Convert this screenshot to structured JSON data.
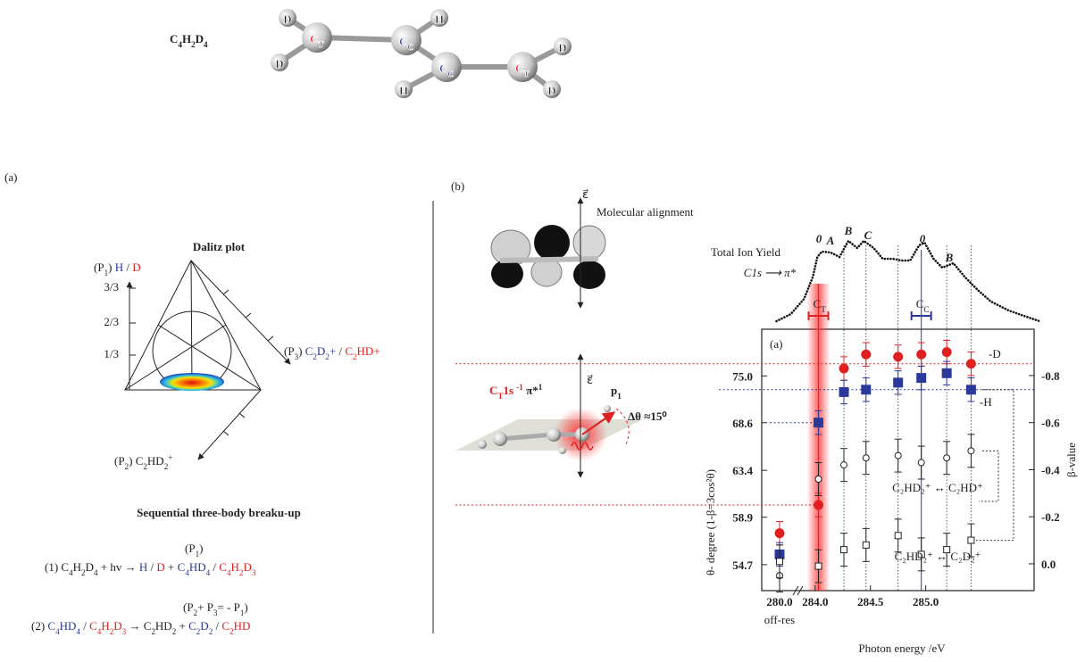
{
  "molecule": {
    "formula": [
      {
        "text": "C"
      },
      {
        "text": "4",
        "sub": true
      },
      {
        "text": "H"
      },
      {
        "text": "2",
        "sub": true
      },
      {
        "text": "D"
      },
      {
        "text": "4",
        "sub": true
      }
    ],
    "carbons": [
      [
        {
          "text": "C",
          "color": "#e02020"
        },
        {
          "text": "T",
          "sub": true,
          "color": "#e02020"
        }
      ],
      [
        {
          "text": "C",
          "color": "#2b3a9a"
        },
        {
          "text": "C",
          "sub": true,
          "color": "#2b3a9a"
        }
      ],
      [
        {
          "text": "C",
          "color": "#2b3a9a"
        },
        {
          "text": "C",
          "sub": true,
          "color": "#2b3a9a"
        }
      ],
      [
        {
          "text": "C",
          "color": "#e02020"
        },
        {
          "text": "T",
          "sub": true,
          "color": "#e02020"
        }
      ]
    ],
    "hydrogens": [
      "H",
      "H"
    ],
    "deuteriums": [
      "D",
      "D",
      "D",
      "D"
    ]
  },
  "panel_a": {
    "label": "(a)",
    "dalitz_title": "Dalitz plot",
    "axis_ticks": [
      "3/3",
      "2/3",
      "1/3"
    ],
    "p1": [
      {
        "text": "(P"
      },
      {
        "text": "1",
        "sub": true
      },
      {
        "text": ") "
      },
      {
        "text": "H",
        "color": "#2b3a9a"
      },
      {
        "text": " / "
      },
      {
        "text": "D",
        "color": "#e02020"
      }
    ],
    "p3": [
      {
        "text": "(P"
      },
      {
        "text": "3",
        "sub": true
      },
      {
        "text": ") "
      },
      {
        "text": "C",
        "color": "#2b3a9a"
      },
      {
        "text": "2",
        "sub": true,
        "color": "#2b3a9a"
      },
      {
        "text": "D",
        "color": "#2b3a9a"
      },
      {
        "text": "2",
        "sub": true,
        "color": "#2b3a9a"
      },
      {
        "text": "+",
        "color": "#2b3a9a"
      },
      {
        "text": " / "
      },
      {
        "text": "C",
        "color": "#e02020"
      },
      {
        "text": "2",
        "sub": true,
        "color": "#e02020"
      },
      {
        "text": "HD+",
        "color": "#e02020"
      }
    ],
    "p2": [
      {
        "text": "(P"
      },
      {
        "text": "2",
        "sub": true
      },
      {
        "text": ")  C"
      },
      {
        "text": "2",
        "sub": true
      },
      {
        "text": "HD"
      },
      {
        "text": "2",
        "sub": true
      },
      {
        "text": "+",
        "sup": true
      }
    ],
    "sequence_title": "Sequential three-body breaku-up",
    "eq1_top": [
      {
        "text": "(P"
      },
      {
        "text": "1",
        "sub": true
      },
      {
        "text": ")"
      }
    ],
    "eq1": [
      {
        "text": "(1)  C"
      },
      {
        "text": "4",
        "sub": true
      },
      {
        "text": "H"
      },
      {
        "text": "2",
        "sub": true
      },
      {
        "text": "D"
      },
      {
        "text": "4",
        "sub": true
      },
      {
        "text": "  + hv  →  "
      },
      {
        "text": "H",
        "color": "#2b3a9a"
      },
      {
        "text": " / "
      },
      {
        "text": "D",
        "color": "#e02020"
      },
      {
        "text": "  +  "
      },
      {
        "text": "C",
        "color": "#2b3a9a"
      },
      {
        "text": "4",
        "sub": true,
        "color": "#2b3a9a"
      },
      {
        "text": "HD",
        "color": "#2b3a9a"
      },
      {
        "text": "4",
        "sub": true,
        "color": "#2b3a9a"
      },
      {
        "text": " / "
      },
      {
        "text": "C",
        "color": "#e02020"
      },
      {
        "text": "4",
        "sub": true,
        "color": "#e02020"
      },
      {
        "text": "H",
        "color": "#e02020"
      },
      {
        "text": "2",
        "sub": true,
        "color": "#e02020"
      },
      {
        "text": "D",
        "color": "#e02020"
      },
      {
        "text": "3",
        "sub": true,
        "color": "#e02020"
      }
    ],
    "eq2_top": [
      {
        "text": "(P"
      },
      {
        "text": "2",
        "sub": true
      },
      {
        "text": "+ P"
      },
      {
        "text": "3",
        "sub": true
      },
      {
        "text": "= - P"
      },
      {
        "text": "1",
        "sub": true
      },
      {
        "text": ")"
      }
    ],
    "eq2": [
      {
        "text": "(2)  "
      },
      {
        "text": "C",
        "color": "#2b3a9a"
      },
      {
        "text": "4",
        "sub": true,
        "color": "#2b3a9a"
      },
      {
        "text": "HD",
        "color": "#2b3a9a"
      },
      {
        "text": "4",
        "sub": true,
        "color": "#2b3a9a"
      },
      {
        "text": " / "
      },
      {
        "text": "C",
        "color": "#e02020"
      },
      {
        "text": "4",
        "sub": true,
        "color": "#e02020"
      },
      {
        "text": "H",
        "color": "#e02020"
      },
      {
        "text": "2",
        "sub": true,
        "color": "#e02020"
      },
      {
        "text": "D",
        "color": "#e02020"
      },
      {
        "text": "3",
        "sub": true,
        "color": "#e02020"
      },
      {
        "text": "   →  C"
      },
      {
        "text": "2",
        "sub": true
      },
      {
        "text": "HD"
      },
      {
        "text": "2",
        "sub": true
      },
      {
        "text": "  +  "
      },
      {
        "text": "C",
        "color": "#2b3a9a"
      },
      {
        "text": "2",
        "sub": true,
        "color": "#2b3a9a"
      },
      {
        "text": "D",
        "color": "#2b3a9a"
      },
      {
        "text": "2",
        "sub": true,
        "color": "#2b3a9a"
      },
      {
        "text": " / "
      },
      {
        "text": "C",
        "color": "#e02020"
      },
      {
        "text": "2",
        "sub": true,
        "color": "#e02020"
      },
      {
        "text": "HD",
        "color": "#e02020"
      }
    ]
  },
  "panel_b": {
    "label": "(b)",
    "field": "ε⃗",
    "alignment": "Molecular alignment",
    "excitation": [
      {
        "text": "C",
        "color": "#e02020"
      },
      {
        "text": "T",
        "sub": true,
        "color": "#e02020"
      },
      {
        "text": "1s ",
        "color": "#e02020"
      },
      {
        "text": "-1",
        "sup": true,
        "color": "#e02020"
      },
      {
        "text": " π*"
      },
      {
        "text": "1",
        "sup": true
      }
    ],
    "momentum": [
      {
        "text": "p"
      },
      {
        "text": "1",
        "sub": true
      }
    ],
    "angle": "Δθ ≈15⁰"
  },
  "chart_data": {
    "type": "scatter",
    "label": "(a)",
    "xlabel": "Photon energy /eV",
    "x_sublabel": "off-res",
    "ylabel": "θ- degree  (1-β=3cos²θ)",
    "y2label": "β-value",
    "x": [
      280.0,
      284.03,
      284.26,
      284.46,
      284.75,
      284.96,
      285.19,
      285.41
    ],
    "xlim": [
      279.8,
      285.98
    ],
    "xbreak": [
      280.2,
      283.84
    ],
    "xticks": [
      {
        "value": 280,
        "label": "280.0"
      },
      {
        "value": 284,
        "label": "284.0"
      },
      284.5,
      {
        "value": 285,
        "label": "285.0"
      }
    ],
    "ylim": [
      52.5,
      88.2
    ],
    "yscale": "3cos²θ-1",
    "yticks": [
      {
        "value": 75,
        "label": "75.0"
      },
      68.6,
      63.4,
      58.9,
      54.7
    ],
    "y2lim": [
      0.114,
      -0.997
    ],
    "y2ticks": [
      -0.8,
      -0.6,
      -0.4,
      -0.2,
      {
        "value": 0,
        "label": "0.0"
      }
    ],
    "series": [
      {
        "name": "-D",
        "color": "#e02020",
        "marker": "circle",
        "filled": true,
        "axis": "y2",
        "error": 0.05,
        "values": [
          -0.13,
          -0.25,
          -0.83,
          -0.89,
          -0.88,
          -0.89,
          -0.9,
          -0.85
        ]
      },
      {
        "name": "-H",
        "color": "#2b3a9a",
        "marker": "square",
        "filled": true,
        "axis": "y2",
        "error": 0.05,
        "values": [
          -0.04,
          -0.6,
          -0.73,
          -0.74,
          -0.77,
          -0.79,
          -0.81,
          -0.74
        ]
      },
      {
        "name": "C₂HD₂⁺ ↔ C₂HD⁺",
        "color": "#222222",
        "marker": "circle",
        "filled": false,
        "axis": "y2",
        "error": 0.07,
        "values": [
          0.05,
          -0.36,
          -0.42,
          -0.45,
          -0.46,
          -0.43,
          -0.45,
          -0.48
        ]
      },
      {
        "name": "C₂HD₂⁺ ↔ C₂D₂⁺",
        "color": "#222222",
        "marker": "square",
        "filled": false,
        "axis": "y2",
        "error": 0.07,
        "values": [
          -0.01,
          0.01,
          -0.06,
          -0.08,
          -0.12,
          -0.04,
          -0.06,
          -0.1
        ]
      }
    ],
    "resonances": [
      {
        "label": [
          {
            "text": "C"
          },
          {
            "text": "T",
            "sub": true
          }
        ],
        "x": 284.03,
        "color": "#e02020"
      },
      {
        "label": [
          {
            "text": "C"
          },
          {
            "text": "C",
            "sub": true
          }
        ],
        "x": 284.96,
        "color": "#2b3a9a"
      }
    ],
    "total_ion_yield": {
      "title": "Total Ion Yield",
      "subtitle": "C1s ⟶ π*",
      "x": [
        283.65,
        283.78,
        283.9,
        283.98,
        284.02,
        284.06,
        284.14,
        284.22,
        284.3,
        284.38,
        284.44,
        284.53,
        284.61,
        284.7,
        284.78,
        284.86,
        284.94,
        284.99,
        285.07,
        285.15,
        285.25,
        285.35,
        285.47,
        285.59,
        285.75,
        285.91,
        286.03
      ],
      "values": [
        0,
        8,
        25,
        50,
        72,
        78,
        77,
        72,
        90,
        82,
        90,
        82,
        70,
        70,
        68,
        68,
        85,
        88,
        70,
        60,
        65,
        50,
        35,
        22,
        12,
        5,
        0
      ],
      "ylim": [
        0,
        90
      ],
      "peaks": [
        "0",
        "A",
        "B",
        "C",
        "0",
        "B"
      ]
    }
  }
}
